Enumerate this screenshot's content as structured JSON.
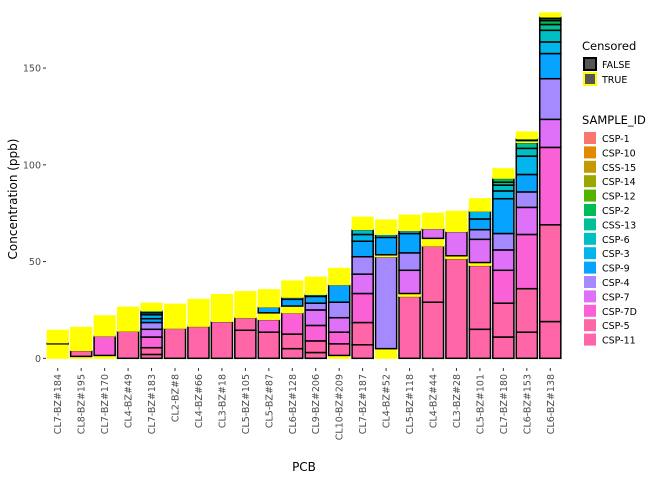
{
  "chart_data": {
    "type": "bar",
    "stacked": true,
    "title": "",
    "xlabel": "PCB",
    "ylabel": "Concentration (ppb)",
    "ylim": [
      -5,
      180
    ],
    "yticks": [
      0,
      50,
      100,
      150
    ],
    "categories": [
      "CL7-BZ#184",
      "CL8-BZ#195",
      "CL7-BZ#170",
      "CL4-BZ#49",
      "CL7-BZ#183",
      "CL2-BZ#8",
      "CL4-BZ#66",
      "CL3-BZ#18",
      "CL5-BZ#105",
      "CL5-BZ#87",
      "CL6-BZ#128",
      "CL9-BZ#206",
      "CL10-BZ#209",
      "CL7-BZ#187",
      "CL4-BZ#52",
      "CL5-BZ#118",
      "CL4-BZ#44",
      "CL3-BZ#28",
      "CL5-BZ#101",
      "CL7-BZ#180",
      "CL6-BZ#153",
      "CL6-BZ#138"
    ],
    "sample_ids": [
      "CSP-1",
      "CSP-10",
      "CSS-15",
      "CSP-14",
      "CSP-12",
      "CSP-2",
      "CSS-13",
      "CSP-6",
      "CSP-3",
      "CSP-9",
      "CSP-4",
      "CSP-7",
      "CSP-7D",
      "CSP-5",
      "CSP-11"
    ],
    "sample_colors": [
      "#F8766D",
      "#E38900",
      "#C49A00",
      "#99A800",
      "#53B400",
      "#00BC56",
      "#00C094",
      "#00BFC4",
      "#00B6EB",
      "#06A4FF",
      "#A58AFF",
      "#DF70F8",
      "#FB61D7",
      "#FF66A8",
      "#FF66A8"
    ],
    "censored_legend": {
      "title": "Censored",
      "items": [
        {
          "label": "FALSE",
          "fill": "#555555",
          "outline": "#000000"
        },
        {
          "label": "TRUE",
          "fill": "#555555",
          "outline": "#FFFF00"
        }
      ]
    },
    "sample_legend_title": "SAMPLE_ID",
    "bars": [
      {
        "category": "CL7-BZ#184",
        "segments": [
          {
            "s": "CSP-2",
            "v": 7.5,
            "c": true
          },
          {
            "s": "CSS-13",
            "v": 0.5,
            "c": false
          },
          {
            "s": "CSP-6",
            "v": 6.5,
            "c": true
          }
        ]
      },
      {
        "category": "CL8-BZ#195",
        "segments": [
          {
            "s": "CSP-11",
            "v": 1,
            "c": true
          },
          {
            "s": "CSP-5",
            "v": 3,
            "c": false
          },
          {
            "s": "CSP-6",
            "v": 5,
            "c": true
          },
          {
            "s": "CSP-3",
            "v": 1,
            "c": true
          },
          {
            "s": "CSP-9",
            "v": 6,
            "c": true
          }
        ]
      },
      {
        "category": "CL7-BZ#170",
        "segments": [
          {
            "s": "CSP-11",
            "v": 1.5,
            "c": true
          },
          {
            "s": "CSP-7D",
            "v": 10,
            "c": false
          },
          {
            "s": "CSP-7",
            "v": 10.5,
            "c": true
          }
        ]
      },
      {
        "category": "CL4-BZ#49",
        "segments": [
          {
            "s": "CSP-11",
            "v": 14,
            "c": false
          },
          {
            "s": "CSP-7",
            "v": 12.5,
            "c": true
          }
        ]
      },
      {
        "category": "CL7-BZ#183",
        "segments": [
          {
            "s": "CSP-11",
            "v": 2,
            "c": false
          },
          {
            "s": "CSP-5",
            "v": 3.5,
            "c": false
          },
          {
            "s": "CSP-7D",
            "v": 5.5,
            "c": false
          },
          {
            "s": "CSP-7",
            "v": 4,
            "c": false
          },
          {
            "s": "CSP-4",
            "v": 3.5,
            "c": false
          },
          {
            "s": "CSP-9",
            "v": 2,
            "c": false
          },
          {
            "s": "CSP-3",
            "v": 2,
            "c": false
          },
          {
            "s": "CSP-6",
            "v": 1,
            "c": false
          },
          {
            "s": "CSS-13",
            "v": 1,
            "c": false
          },
          {
            "s": "CSP-7",
            "v": 4,
            "c": true
          }
        ]
      },
      {
        "category": "CL2-BZ#8",
        "segments": [
          {
            "s": "CSP-11",
            "v": 15.5,
            "c": false
          },
          {
            "s": "CSP-7D",
            "v": 4.5,
            "c": true
          },
          {
            "s": "CSP-3",
            "v": 1.5,
            "c": true
          },
          {
            "s": "CSP-7",
            "v": 6.5,
            "c": true
          }
        ]
      },
      {
        "category": "CL4-BZ#66",
        "segments": [
          {
            "s": "CSP-11",
            "v": 16.5,
            "c": false
          },
          {
            "s": "CSP-7D",
            "v": 4.5,
            "c": true
          },
          {
            "s": "CSP-3",
            "v": 1,
            "c": true
          },
          {
            "s": "CSP-7",
            "v": 8.5,
            "c": true
          }
        ]
      },
      {
        "category": "CL3-BZ#18",
        "segments": [
          {
            "s": "CSP-11",
            "v": 19,
            "c": false
          },
          {
            "s": "CSP-7",
            "v": 14,
            "c": true
          }
        ]
      },
      {
        "category": "CL5-BZ#105",
        "segments": [
          {
            "s": "CSP-11",
            "v": 14.5,
            "c": false
          },
          {
            "s": "CSP-5",
            "v": 6.5,
            "c": false
          },
          {
            "s": "CSP-7D",
            "v": 7,
            "c": true
          },
          {
            "s": "CSP-3",
            "v": 1,
            "c": true
          },
          {
            "s": "CSP-7",
            "v": 5.5,
            "c": true
          }
        ]
      },
      {
        "category": "CL5-BZ#87",
        "segments": [
          {
            "s": "CSP-11",
            "v": 13.5,
            "c": false
          },
          {
            "s": "CSP-7D",
            "v": 6.5,
            "c": false
          },
          {
            "s": "CSP-5",
            "v": 3.5,
            "c": true
          },
          {
            "s": "CSP-9",
            "v": 3,
            "c": false
          },
          {
            "s": "CSP-3",
            "v": 1,
            "c": true
          },
          {
            "s": "CSP-7",
            "v": 8,
            "c": true
          }
        ]
      },
      {
        "category": "CL6-BZ#128",
        "segments": [
          {
            "s": "CSP-11",
            "v": 5,
            "c": false
          },
          {
            "s": "CSP-5",
            "v": 7.5,
            "c": false
          },
          {
            "s": "CSP-7D",
            "v": 11,
            "c": false
          },
          {
            "s": "CSP-7",
            "v": 3.5,
            "c": true
          },
          {
            "s": "CSP-9",
            "v": 3.5,
            "c": false
          },
          {
            "s": "CSP-3",
            "v": 1,
            "c": false
          },
          {
            "s": "CSP-6",
            "v": 8.5,
            "c": true
          }
        ]
      },
      {
        "category": "CL9-BZ#206",
        "segments": [
          {
            "s": "CSP-11",
            "v": 3,
            "c": false
          },
          {
            "s": "CSP-5",
            "v": 6,
            "c": false
          },
          {
            "s": "CSP-7D",
            "v": 8,
            "c": false
          },
          {
            "s": "CSP-7",
            "v": 8,
            "c": false
          },
          {
            "s": "CSP-4",
            "v": 3.5,
            "c": false
          },
          {
            "s": "CSP-9",
            "v": 3.5,
            "c": false
          },
          {
            "s": "CSP-3",
            "v": 1,
            "c": false
          },
          {
            "s": "CSP-7",
            "v": 9,
            "c": true
          }
        ]
      },
      {
        "category": "CL10-BZ#209",
        "segments": [
          {
            "s": "CSP-11",
            "v": 1.5,
            "c": true
          },
          {
            "s": "CSP-5",
            "v": 6,
            "c": false
          },
          {
            "s": "CSP-7D",
            "v": 6,
            "c": false
          },
          {
            "s": "CSP-7",
            "v": 7.5,
            "c": false
          },
          {
            "s": "CSP-4",
            "v": 8,
            "c": false
          },
          {
            "s": "CSP-9",
            "v": 9,
            "c": false
          },
          {
            "s": "CSP-7",
            "v": 8.5,
            "c": true
          }
        ]
      },
      {
        "category": "CL7-BZ#187",
        "segments": [
          {
            "s": "CSP-11",
            "v": 7,
            "c": false
          },
          {
            "s": "CSP-5",
            "v": 11.5,
            "c": false
          },
          {
            "s": "CSP-7D",
            "v": 15,
            "c": false
          },
          {
            "s": "CSP-7",
            "v": 10,
            "c": false
          },
          {
            "s": "CSP-4",
            "v": 9,
            "c": false
          },
          {
            "s": "CSP-9",
            "v": 8,
            "c": false
          },
          {
            "s": "CSP-3",
            "v": 3.5,
            "c": false
          },
          {
            "s": "CSP-6",
            "v": 2.5,
            "c": false
          },
          {
            "s": "CSS-13",
            "v": 1.5,
            "c": true
          },
          {
            "s": "CSP-7",
            "v": 5,
            "c": true
          }
        ]
      },
      {
        "category": "CL4-BZ#52",
        "segments": [
          {
            "s": "CSP-11",
            "v": 5,
            "c": true
          },
          {
            "s": "CSP-4",
            "v": 47.5,
            "c": false
          },
          {
            "s": "CSP-7D",
            "v": 1,
            "c": true
          },
          {
            "s": "CSP-9",
            "v": 9,
            "c": false
          },
          {
            "s": "CSP-3",
            "v": 1.5,
            "c": false
          },
          {
            "s": "CSP-6",
            "v": 2.5,
            "c": true
          },
          {
            "s": "CSP-7",
            "v": 5,
            "c": true
          }
        ]
      },
      {
        "category": "CL5-BZ#118",
        "segments": [
          {
            "s": "CSP-5",
            "v": 32,
            "c": false
          },
          {
            "s": "CSP-7D",
            "v": 1.5,
            "c": true
          },
          {
            "s": "CSP-7",
            "v": 12,
            "c": false
          },
          {
            "s": "CSP-4",
            "v": 9,
            "c": false
          },
          {
            "s": "CSP-9",
            "v": 10,
            "c": false
          },
          {
            "s": "CSP-3",
            "v": 1.5,
            "c": false
          },
          {
            "s": "CSP-7",
            "v": 8,
            "c": true
          }
        ]
      },
      {
        "category": "CL4-BZ#44",
        "segments": [
          {
            "s": "CSP-11",
            "v": 29,
            "c": false
          },
          {
            "s": "CSP-5",
            "v": 29,
            "c": false
          },
          {
            "s": "CSP-7D",
            "v": 4,
            "c": true
          },
          {
            "s": "CSP-7",
            "v": 5,
            "c": false
          },
          {
            "s": "CSP-7",
            "v": 8,
            "c": true
          }
        ]
      },
      {
        "category": "CL3-BZ#28",
        "segments": [
          {
            "s": "CSP-11",
            "v": 51.5,
            "c": false
          },
          {
            "s": "CSP-7D",
            "v": 1.5,
            "c": true
          },
          {
            "s": "CSP-7",
            "v": 12.5,
            "c": false
          },
          {
            "s": "CSP-7",
            "v": 10.5,
            "c": true
          }
        ]
      },
      {
        "category": "CL5-BZ#101",
        "segments": [
          {
            "s": "CSP-11",
            "v": 15,
            "c": false
          },
          {
            "s": "CSP-5",
            "v": 33,
            "c": false
          },
          {
            "s": "CSP-7D",
            "v": 1.5,
            "c": true
          },
          {
            "s": "CSP-7",
            "v": 12,
            "c": false
          },
          {
            "s": "CSP-4",
            "v": 5,
            "c": false
          },
          {
            "s": "CSP-9",
            "v": 5.5,
            "c": false
          },
          {
            "s": "CSP-3",
            "v": 4,
            "c": false
          },
          {
            "s": "CSP-7",
            "v": 6.5,
            "c": true
          }
        ]
      },
      {
        "category": "CL7-BZ#180",
        "segments": [
          {
            "s": "CSP-11",
            "v": 11,
            "c": false
          },
          {
            "s": "CSP-5",
            "v": 17.5,
            "c": false
          },
          {
            "s": "CSP-7D",
            "v": 17,
            "c": false
          },
          {
            "s": "CSP-7",
            "v": 10.5,
            "c": false
          },
          {
            "s": "CSP-4",
            "v": 8.5,
            "c": false
          },
          {
            "s": "CSP-9",
            "v": 18,
            "c": false
          },
          {
            "s": "CSP-3",
            "v": 4,
            "c": false
          },
          {
            "s": "CSP-6",
            "v": 3,
            "c": false
          },
          {
            "s": "CSS-13",
            "v": 1.5,
            "c": false
          },
          {
            "s": "CSP-2",
            "v": 2,
            "c": false
          },
          {
            "s": "CSP-7",
            "v": 5,
            "c": true
          }
        ]
      },
      {
        "category": "CL6-BZ#153",
        "segments": [
          {
            "s": "CSP-11",
            "v": 13.5,
            "c": false
          },
          {
            "s": "CSP-5",
            "v": 22.5,
            "c": false
          },
          {
            "s": "CSP-7D",
            "v": 28,
            "c": false
          },
          {
            "s": "CSP-7",
            "v": 14,
            "c": false
          },
          {
            "s": "CSP-4",
            "v": 8,
            "c": false
          },
          {
            "s": "CSP-9",
            "v": 9,
            "c": false
          },
          {
            "s": "CSP-3",
            "v": 9.5,
            "c": false
          },
          {
            "s": "CSP-6",
            "v": 4,
            "c": false
          },
          {
            "s": "CSS-13",
            "v": 3,
            "c": false
          },
          {
            "s": "CSP-2",
            "v": 1,
            "c": true
          },
          {
            "s": "CSP-12",
            "v": 1,
            "c": false
          },
          {
            "s": "CSP-7",
            "v": 3.5,
            "c": true
          }
        ]
      },
      {
        "category": "CL6-BZ#138",
        "segments": [
          {
            "s": "CSP-11",
            "v": 19,
            "c": false
          },
          {
            "s": "CSP-5",
            "v": 50,
            "c": false
          },
          {
            "s": "CSP-7D",
            "v": 40,
            "c": false
          },
          {
            "s": "CSP-7",
            "v": 14.5,
            "c": false
          },
          {
            "s": "CSP-4",
            "v": 21,
            "c": false
          },
          {
            "s": "CSP-9",
            "v": 13,
            "c": false
          },
          {
            "s": "CSP-3",
            "v": 6,
            "c": false
          },
          {
            "s": "CSP-6",
            "v": 6,
            "c": false
          },
          {
            "s": "CSS-13",
            "v": 3,
            "c": false
          },
          {
            "s": "CSP-2",
            "v": 2,
            "c": false
          },
          {
            "s": "CSP-12",
            "v": 1,
            "c": false
          },
          {
            "s": "CSP-14",
            "v": 1,
            "c": false
          },
          {
            "s": "CSP-7",
            "v": 2,
            "c": true
          }
        ]
      }
    ]
  },
  "colors": {
    "censored_outline": "#FFFF00",
    "uncensored_outline": "#000000",
    "legend_fill": "#555555"
  }
}
